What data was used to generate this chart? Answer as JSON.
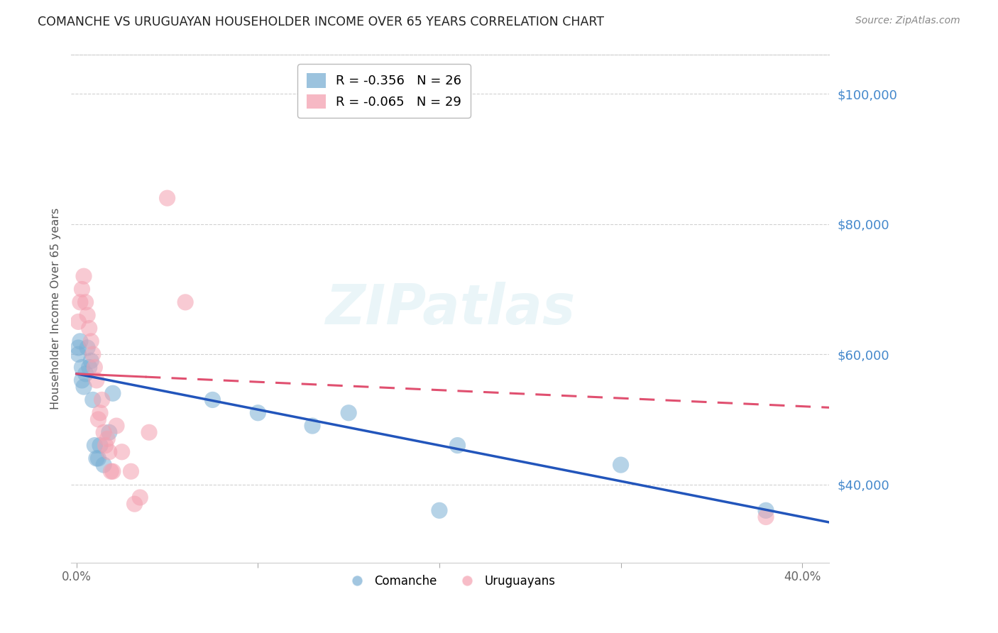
{
  "title": "COMANCHE VS URUGUAYAN HOUSEHOLDER INCOME OVER 65 YEARS CORRELATION CHART",
  "source": "Source: ZipAtlas.com",
  "ylabel": "Householder Income Over 65 years",
  "y_tick_values": [
    40000,
    60000,
    80000,
    100000
  ],
  "ylim": [
    28000,
    106000
  ],
  "xlim": [
    -0.003,
    0.415
  ],
  "legend_entries": [
    {
      "label": "R = -0.356   N = 26",
      "color": "#7bafd4"
    },
    {
      "label": "R = -0.065   N = 29",
      "color": "#f4a0b0"
    }
  ],
  "comanche_scatter_x": [
    0.001,
    0.001,
    0.002,
    0.003,
    0.003,
    0.004,
    0.005,
    0.006,
    0.007,
    0.008,
    0.009,
    0.01,
    0.011,
    0.012,
    0.013,
    0.015,
    0.018,
    0.02,
    0.075,
    0.1,
    0.13,
    0.15,
    0.2,
    0.21,
    0.3,
    0.38
  ],
  "comanche_scatter_y": [
    61000,
    60000,
    62000,
    58000,
    56000,
    55000,
    57000,
    61000,
    58000,
    59000,
    53000,
    46000,
    44000,
    44000,
    46000,
    43000,
    48000,
    54000,
    53000,
    51000,
    49000,
    51000,
    36000,
    46000,
    43000,
    36000
  ],
  "uruguayan_scatter_x": [
    0.001,
    0.002,
    0.003,
    0.004,
    0.005,
    0.006,
    0.007,
    0.008,
    0.009,
    0.01,
    0.011,
    0.012,
    0.013,
    0.014,
    0.015,
    0.016,
    0.017,
    0.018,
    0.019,
    0.02,
    0.022,
    0.025,
    0.03,
    0.032,
    0.035,
    0.04,
    0.05,
    0.06,
    0.38
  ],
  "uruguayan_scatter_y": [
    65000,
    68000,
    70000,
    72000,
    68000,
    66000,
    64000,
    62000,
    60000,
    58000,
    56000,
    50000,
    51000,
    53000,
    48000,
    46000,
    47000,
    45000,
    42000,
    42000,
    49000,
    45000,
    42000,
    37000,
    38000,
    48000,
    84000,
    68000,
    35000
  ],
  "comanche_color": "#7bafd4",
  "uruguayan_color": "#f4a0b0",
  "trend_comanche_color": "#2255bb",
  "trend_uruguayan_color": "#e05070",
  "background_color": "#ffffff",
  "grid_color": "#cccccc",
  "title_color": "#222222",
  "source_color": "#888888",
  "ylabel_color": "#555555",
  "ytick_color": "#4488cc",
  "xtick_color": "#666666"
}
